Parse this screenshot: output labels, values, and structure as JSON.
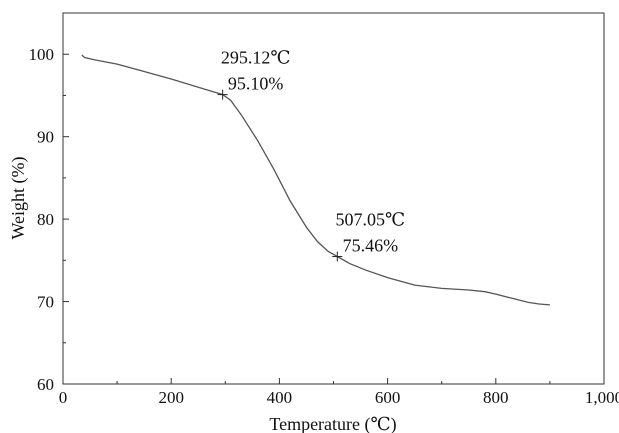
{
  "chart_data": {
    "type": "line",
    "xlabel": "Temperature (℃)",
    "ylabel": "Weight (%)",
    "xlim": [
      0,
      1000
    ],
    "ylim": [
      60,
      105
    ],
    "xticks": [
      0,
      200,
      400,
      600,
      800,
      1000
    ],
    "xtick_labels": [
      "0",
      "200",
      "400",
      "600",
      "800",
      "1,000"
    ],
    "yticks": [
      60,
      70,
      80,
      90,
      100
    ],
    "ytick_labels": [
      "60",
      "70",
      "80",
      "90",
      "100"
    ],
    "grid": false,
    "series": [
      {
        "x": [
          35,
          40,
          60,
          100,
          150,
          200,
          250,
          280,
          295.12,
          310,
          330,
          360,
          390,
          420,
          450,
          470,
          490,
          507.05,
          530,
          560,
          600,
          650,
          700,
          750,
          780,
          800,
          830,
          860,
          880,
          900
        ],
        "y": [
          99.9,
          99.6,
          99.3,
          98.8,
          97.9,
          97.0,
          96.0,
          95.4,
          95.1,
          94.4,
          92.6,
          89.5,
          86.0,
          82.2,
          79.0,
          77.3,
          76.1,
          75.46,
          74.6,
          73.8,
          72.9,
          72.0,
          71.6,
          71.4,
          71.2,
          70.9,
          70.4,
          69.9,
          69.7,
          69.6
        ],
        "color": "#555555"
      }
    ],
    "annotations": [
      {
        "x": 295.12,
        "y": 95.1,
        "line1": "295.12℃",
        "line2": "95.10%"
      },
      {
        "x": 507.05,
        "y": 75.46,
        "line1": "507.05℃",
        "line2": "75.46%"
      }
    ]
  }
}
